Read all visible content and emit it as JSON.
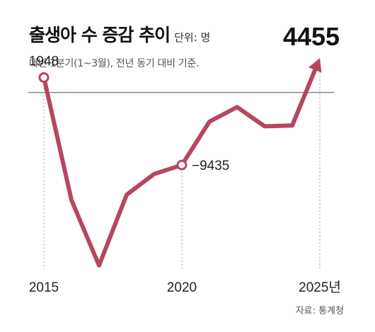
{
  "title": "출생아 수 증감 추이",
  "unit": "단위: 명",
  "subtitle": "매년 1분기(1~3월), 전년 동기 대비 기준.",
  "source": "자료: 통계청",
  "colors": {
    "line": "#b5475f",
    "baseline": "#888888",
    "guide": "#999999"
  },
  "chart_data": {
    "type": "line",
    "title": "출생아 수 증감 추이",
    "x": [
      2015,
      2016,
      2017,
      2018,
      2019,
      2020,
      2021,
      2022,
      2023,
      2024,
      2025
    ],
    "values": [
      1948,
      -14000,
      -22500,
      -13300,
      -10600,
      -9435,
      -3800,
      -1900,
      -4400,
      -4300,
      4455
    ],
    "ylim": [
      -26000,
      6500
    ],
    "x_tick_labels": [
      "2015",
      "2020",
      "2025년"
    ],
    "x_tick_positions": [
      2015,
      2020,
      2025
    ],
    "annotations": [
      {
        "x": 2015,
        "y": 1948,
        "text": "1948"
      },
      {
        "x": 2020,
        "y": -9435,
        "text": "−9435"
      },
      {
        "x": 2025,
        "y": 4455,
        "text": "4455"
      }
    ],
    "baseline": 0,
    "grid": false,
    "legend": "none"
  }
}
